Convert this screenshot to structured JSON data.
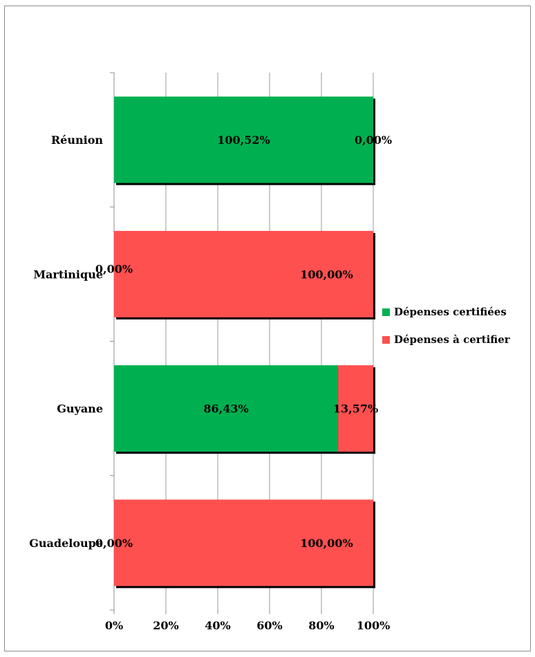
{
  "chart_data": {
    "type": "bar",
    "orientation": "horizontal",
    "stacked": true,
    "percent_stacked": true,
    "categories": [
      "Réunion",
      "Martinique",
      "Guyane",
      "Guadeloupe"
    ],
    "series": [
      {
        "name": "Dépenses certifiées",
        "color": "#00b050",
        "values": [
          100.52,
          0.0,
          86.43,
          0.0
        ],
        "labels": [
          "100,52%",
          "0,00%",
          "86,43%",
          "0,00%"
        ]
      },
      {
        "name": "Dépenses à certifier",
        "color": "#ff5050",
        "values": [
          0.0,
          100.0,
          13.57,
          100.0
        ],
        "labels": [
          "0,00%",
          "100,00%",
          "13,57%",
          "100,00%"
        ]
      }
    ],
    "xlim": [
      0,
      100
    ],
    "x_ticks": [
      "0%",
      "20%",
      "40%",
      "60%",
      "80%",
      "100%"
    ],
    "grid": true,
    "legend_position": "right"
  }
}
